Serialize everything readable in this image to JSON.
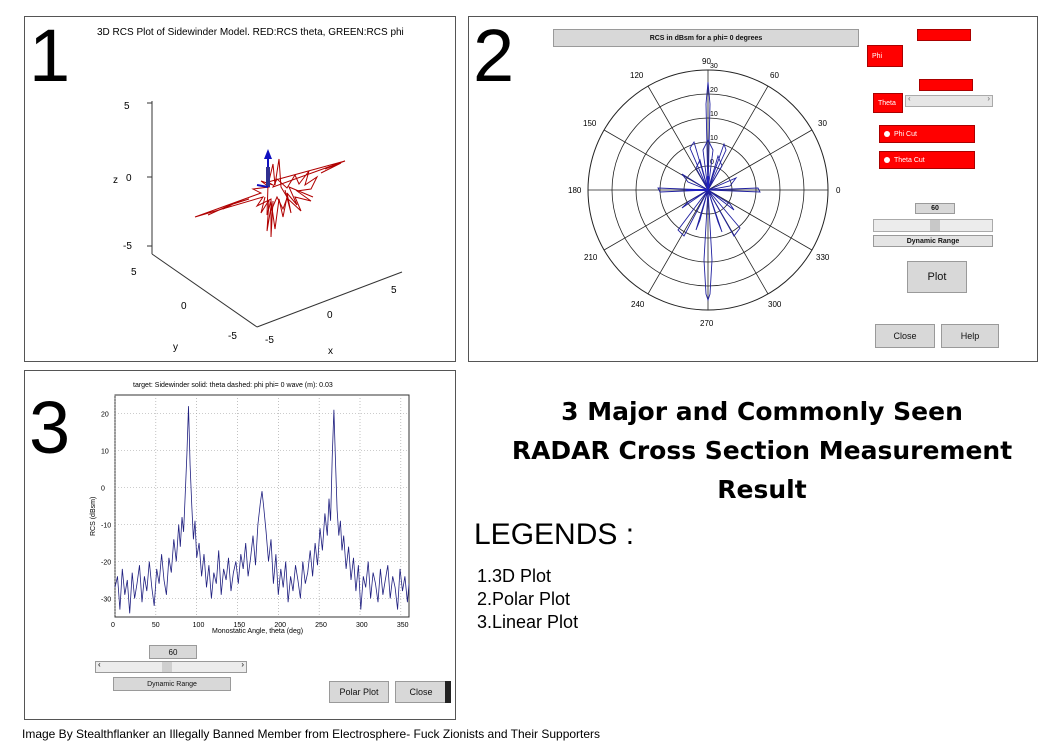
{
  "panel1": {
    "number": "1",
    "title": "3D RCS Plot of Sidewinder Model. RED:RCS theta, GREEN:RCS phi",
    "z_label": "z",
    "z_ticks": [
      "5",
      "0",
      "-5"
    ],
    "y_label": "y",
    "y_ticks": [
      "5",
      "0",
      "-5"
    ],
    "x_label": "x",
    "x_ticks": [
      "-5",
      "0",
      "5"
    ]
  },
  "panel2": {
    "number": "2",
    "title": "RCS in dBsm for a phi= 0 degrees",
    "angle_labels": [
      "90",
      "60",
      "30",
      "0",
      "330",
      "300",
      "270",
      "240",
      "210",
      "180",
      "150",
      "120"
    ],
    "radial_labels_top": [
      "30",
      "20",
      "10"
    ],
    "radial_labels_mid": [
      "10",
      "0"
    ],
    "phi_label": "Phi",
    "theta_label": "Theta",
    "phi_cut": "Phi Cut",
    "theta_cut": "Theta Cut",
    "range_value": "60",
    "dynamic_range": "Dynamic Range",
    "plot": "Plot",
    "close": "Close",
    "help": "Help",
    "color_accent": "#ff0000"
  },
  "panel3": {
    "number": "3",
    "title": "target: Sidewinder  solid: theta      dashed: phi     phi= 0     wave (m): 0.03",
    "ylabel": "RCS (dBsm)",
    "xlabel": "Monostatic Angle, theta (deg)",
    "range_value": "60",
    "dynamic_range": "Dynamic Range",
    "polar_plot": "Polar Plot",
    "close": "Close"
  },
  "chart_data": {
    "type": "line",
    "title": "target: Sidewinder  solid: theta      dashed: phi     phi= 0     wave (m): 0.03",
    "xlabel": "Monostatic Angle, theta (deg)",
    "ylabel": "RCS (dBsm)",
    "xlim": [
      0,
      360
    ],
    "ylim": [
      -35,
      25
    ],
    "xticks": [
      0,
      50,
      100,
      150,
      200,
      250,
      300,
      350
    ],
    "yticks": [
      20,
      10,
      0,
      -10,
      -20,
      -30
    ],
    "grid": true,
    "series": [
      {
        "color": "#202080",
        "x": [
          0,
          3,
          6,
          9,
          12,
          15,
          18,
          21,
          24,
          27,
          30,
          33,
          36,
          39,
          42,
          45,
          48,
          51,
          54,
          57,
          60,
          63,
          66,
          69,
          72,
          75,
          78,
          80,
          82,
          84,
          86,
          88,
          90,
          92,
          94,
          96,
          98,
          100,
          103,
          106,
          109,
          112,
          115,
          118,
          121,
          124,
          127,
          130,
          133,
          136,
          139,
          142,
          145,
          148,
          151,
          154,
          157,
          160,
          163,
          166,
          169,
          172,
          175,
          178,
          180,
          182,
          185,
          188,
          191,
          194,
          197,
          200,
          203,
          206,
          209,
          212,
          215,
          218,
          221,
          224,
          227,
          230,
          233,
          236,
          239,
          242,
          245,
          248,
          251,
          254,
          257,
          260,
          262,
          264,
          266,
          268,
          270,
          272,
          274,
          276,
          278,
          280,
          283,
          286,
          289,
          292,
          295,
          298,
          301,
          304,
          307,
          310,
          313,
          316,
          319,
          322,
          325,
          328,
          331,
          334,
          337,
          340,
          343,
          346,
          349,
          352,
          355,
          358,
          360
        ],
        "y": [
          -27,
          -24,
          -33,
          -22,
          -29,
          -25,
          -34,
          -23,
          -30,
          -26,
          -21,
          -31,
          -24,
          -28,
          -20,
          -27,
          -32,
          -22,
          -26,
          -18,
          -25,
          -29,
          -19,
          -23,
          -14,
          -20,
          -10,
          -16,
          -8,
          -12,
          -2,
          9,
          22,
          6,
          -5,
          -14,
          -9,
          -19,
          -15,
          -24,
          -18,
          -27,
          -21,
          -30,
          -23,
          -26,
          -17,
          -29,
          -22,
          -25,
          -19,
          -28,
          -23,
          -20,
          -26,
          -18,
          -22,
          -15,
          -24,
          -19,
          -13,
          -21,
          -10,
          -4,
          -1,
          -5,
          -12,
          -20,
          -14,
          -26,
          -18,
          -29,
          -22,
          -27,
          -20,
          -31,
          -24,
          -28,
          -21,
          -25,
          -30,
          -20,
          -26,
          -23,
          -17,
          -24,
          -15,
          -21,
          -11,
          -17,
          -7,
          -13,
          -3,
          -9,
          8,
          21,
          7,
          -6,
          -13,
          -9,
          -17,
          -13,
          -22,
          -16,
          -25,
          -19,
          -28,
          -21,
          -33,
          -24,
          -27,
          -20,
          -30,
          -23,
          -26,
          -31,
          -22,
          -29,
          -25,
          -21,
          -30,
          -24,
          -27,
          -33,
          -22,
          -28,
          -24,
          -31,
          -26
        ]
      }
    ]
  },
  "headline": {
    "line1": "3 Major and Commonly Seen",
    "line2": "RADAR Cross Section Measurement",
    "line3": "Result"
  },
  "legends": {
    "title": "LEGENDS :",
    "items": [
      "1.3D Plot",
      "2.Polar Plot",
      "3.Linear Plot"
    ]
  },
  "footer": "Image By Stealthflanker an Illegally Banned Member from Electrosphere- Fuck Zionists and Their Supporters"
}
